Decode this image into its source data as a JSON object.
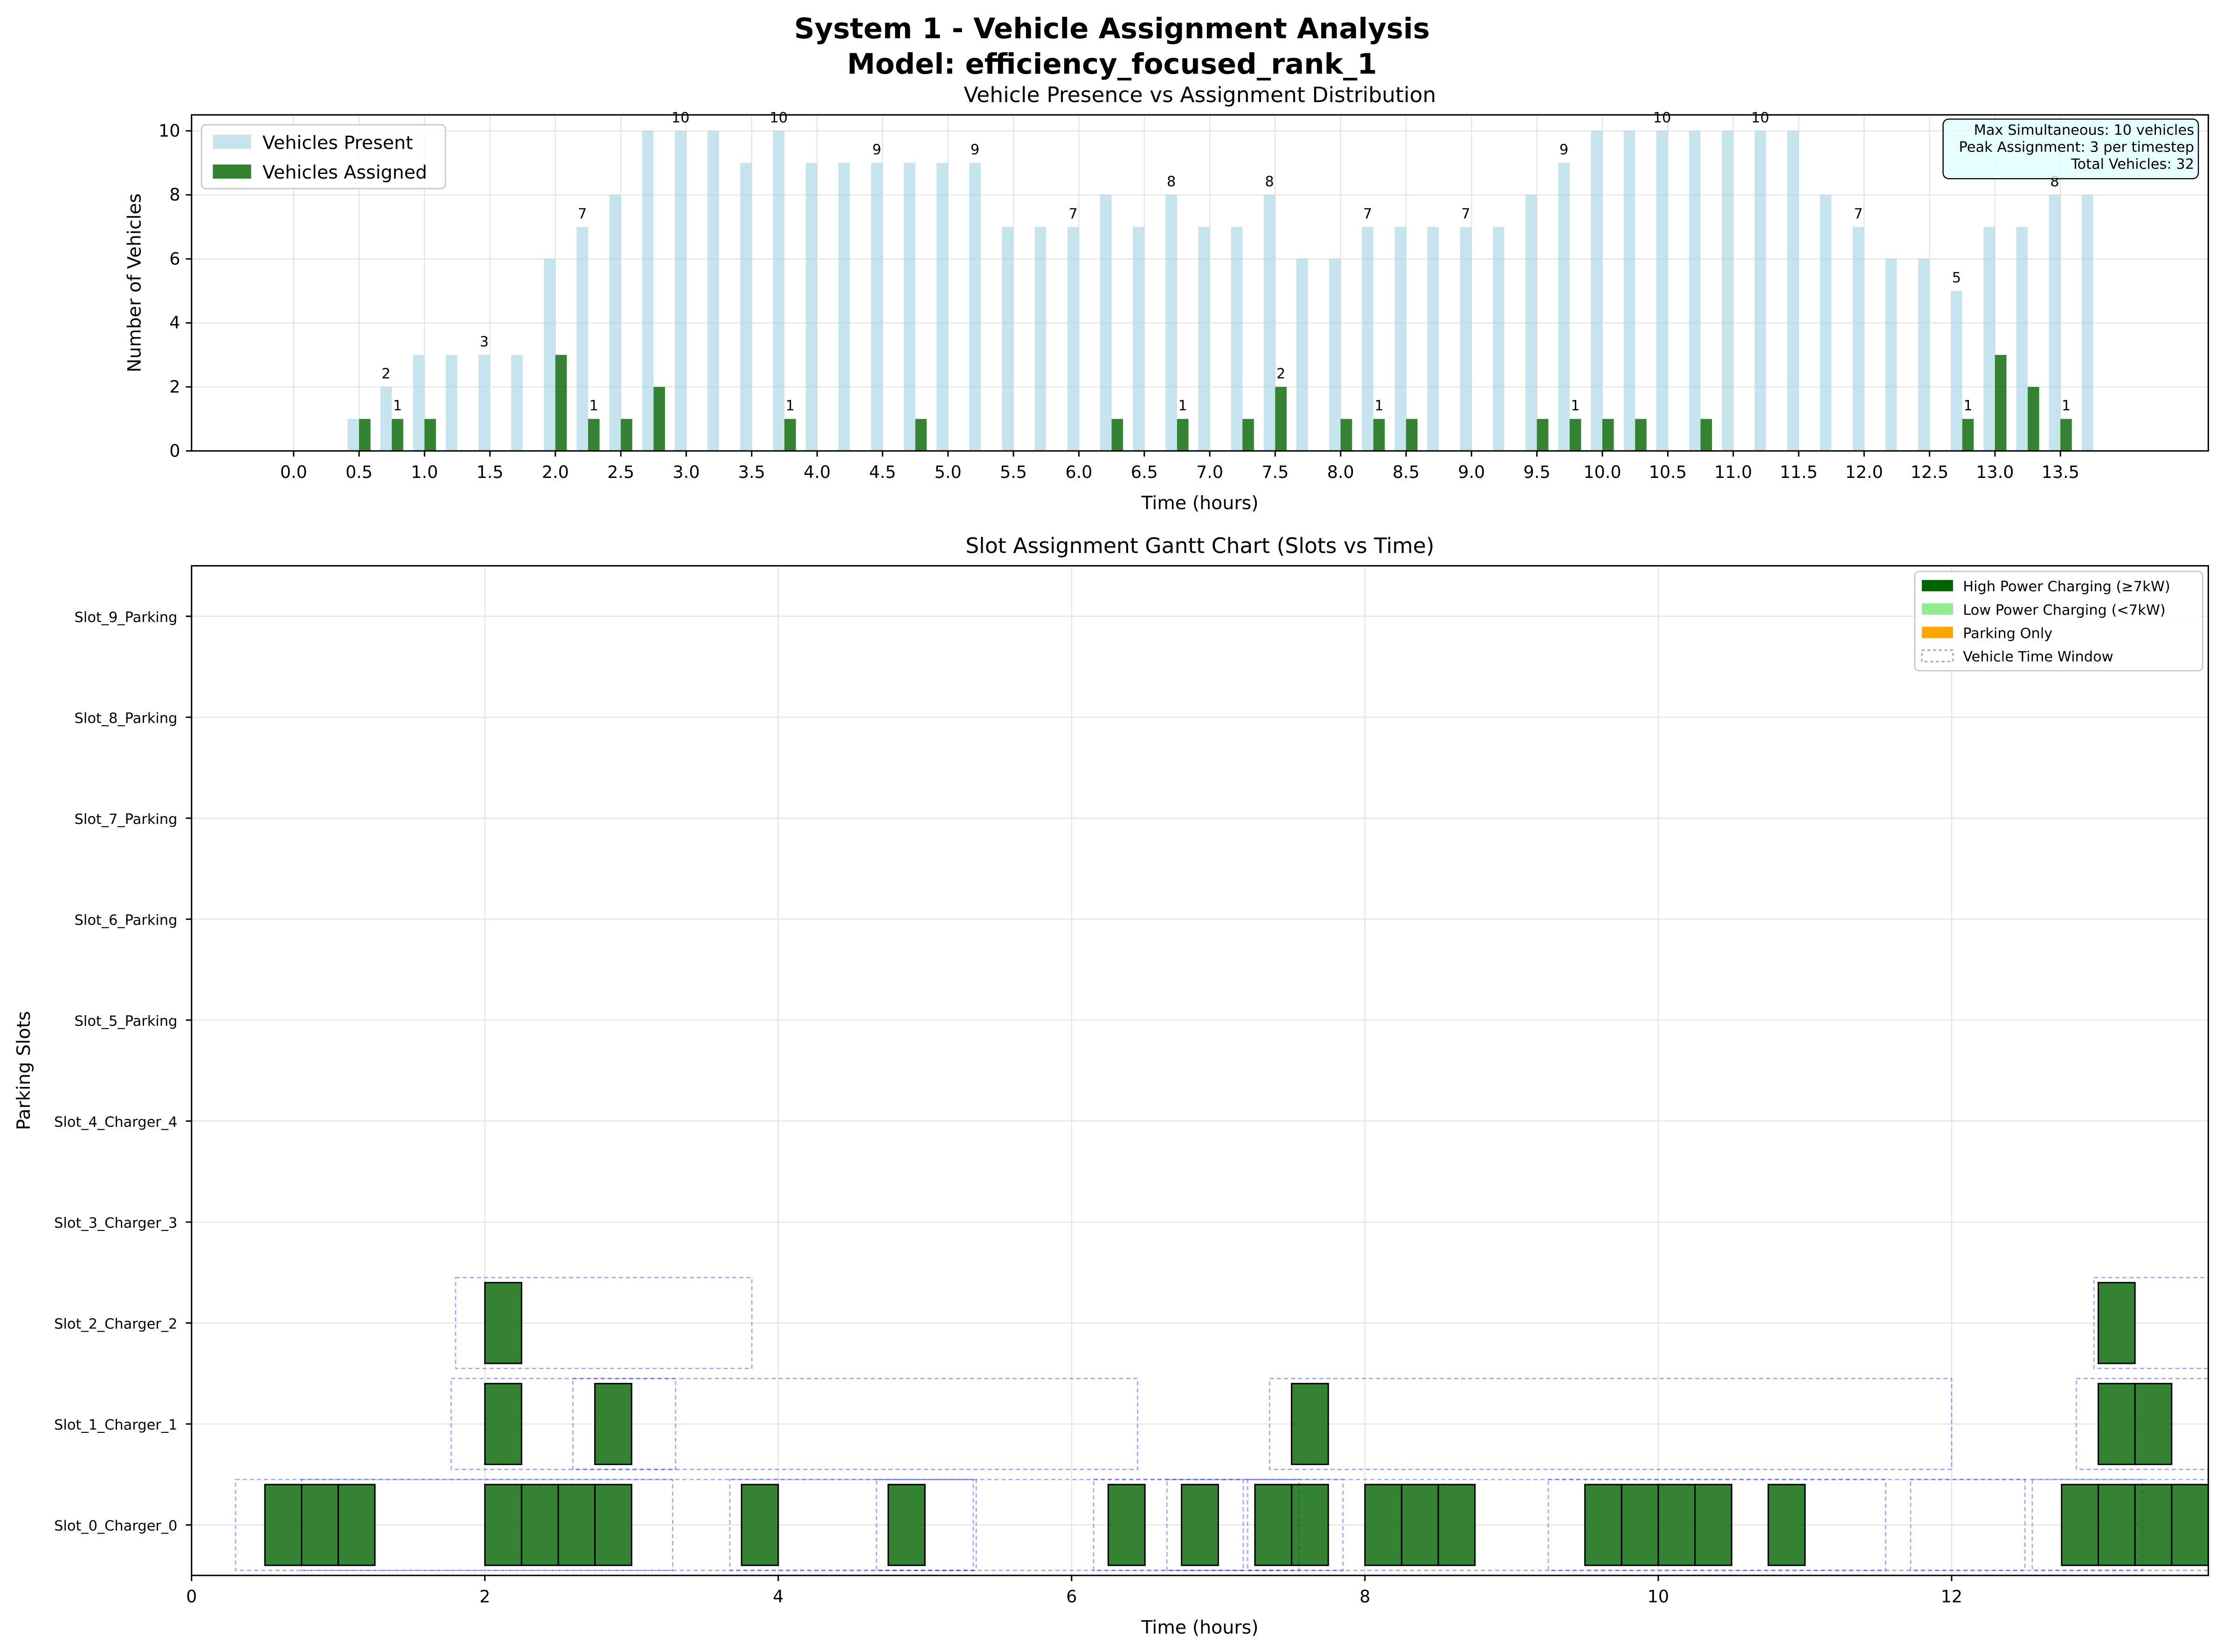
{
  "title": "System 1 - Vehicle Assignment Analysis",
  "subtitle": "Model: efficiency_focused_rank_1",
  "chart_data": [
    {
      "type": "bar",
      "title": "Vehicle Presence vs Assignment Distribution",
      "x_label": "Time (hours)",
      "y_label": "Number of Vehicles",
      "x": [
        0,
        0.25,
        0.5,
        0.75,
        1,
        1.25,
        1.5,
        1.75,
        2,
        2.25,
        2.5,
        2.75,
        3,
        3.25,
        3.5,
        3.75,
        4,
        4.25,
        4.5,
        4.75,
        5,
        5.25,
        5.5,
        5.75,
        6,
        6.25,
        6.5,
        6.75,
        7,
        7.25,
        7.5,
        7.75,
        8,
        8.25,
        8.5,
        8.75,
        9,
        9.25,
        9.5,
        9.75,
        10,
        10.25,
        10.5,
        10.75,
        11,
        11.25,
        11.5,
        11.75,
        12,
        12.25,
        12.5,
        12.75,
        13,
        13.25,
        13.5,
        13.75
      ],
      "series": [
        {
          "name": "Vehicles Present",
          "color": "#add8e6",
          "label_color": "#0000ff",
          "values": [
            0,
            0,
            1,
            2,
            3,
            3,
            3,
            3,
            6,
            7,
            8,
            10,
            10,
            10,
            9,
            10,
            9,
            9,
            9,
            9,
            9,
            9,
            7,
            7,
            7,
            8,
            7,
            8,
            7,
            7,
            8,
            6,
            6,
            7,
            7,
            7,
            7,
            7,
            8,
            9,
            10,
            10,
            10,
            10,
            10,
            10,
            10,
            8,
            7,
            6,
            6,
            5,
            7,
            7,
            8,
            8
          ]
        },
        {
          "name": "Vehicles Assigned",
          "color": "#006400",
          "label_color": "#006400",
          "values": [
            0,
            0,
            1,
            1,
            1,
            0,
            0,
            0,
            3,
            1,
            1,
            2,
            0,
            0,
            0,
            1,
            0,
            0,
            0,
            1,
            0,
            0,
            0,
            0,
            0,
            1,
            0,
            1,
            0,
            1,
            2,
            0,
            1,
            1,
            1,
            0,
            0,
            0,
            1,
            1,
            1,
            1,
            0,
            1,
            0,
            0,
            0,
            0,
            0,
            0,
            0,
            1,
            3,
            2,
            1,
            0
          ]
        }
      ],
      "xlim": [
        -0.78,
        14.63
      ],
      "xticks": [
        {
          "value": 0,
          "label": "0.0"
        },
        {
          "value": 0.5,
          "label": "0.5"
        },
        {
          "value": 1,
          "label": "1.0"
        },
        {
          "value": 1.5,
          "label": "1.5"
        },
        {
          "value": 2,
          "label": "2.0"
        },
        {
          "value": 2.5,
          "label": "2.5"
        },
        {
          "value": 3,
          "label": "3.0"
        },
        {
          "value": 3.5,
          "label": "3.5"
        },
        {
          "value": 4,
          "label": "4.0"
        },
        {
          "value": 4.5,
          "label": "4.5"
        },
        {
          "value": 5,
          "label": "5.0"
        },
        {
          "value": 5.5,
          "label": "5.5"
        },
        {
          "value": 6,
          "label": "6.0"
        },
        {
          "value": 6.5,
          "label": "6.5"
        },
        {
          "value": 7,
          "label": "7.0"
        },
        {
          "value": 7.5,
          "label": "7.5"
        },
        {
          "value": 8,
          "label": "8.0"
        },
        {
          "value": 8.5,
          "label": "8.5"
        },
        {
          "value": 9,
          "label": "9.0"
        },
        {
          "value": 9.5,
          "label": "9.5"
        },
        {
          "value": 10,
          "label": "10.0"
        },
        {
          "value": 10.5,
          "label": "10.5"
        },
        {
          "value": 11,
          "label": "11.0"
        },
        {
          "value": 11.5,
          "label": "11.5"
        },
        {
          "value": 12,
          "label": "12.0"
        },
        {
          "value": 12.5,
          "label": "12.5"
        },
        {
          "value": 13,
          "label": "13.0"
        },
        {
          "value": 13.5,
          "label": "13.5"
        }
      ],
      "ylim": [
        0,
        10.5
      ],
      "yticks": [
        0,
        2,
        4,
        6,
        8,
        10
      ],
      "grid": true,
      "legend": "upper left",
      "info_box": [
        "Max Simultaneous: 10 vehicles",
        "Peak Assignment: 3 per timestep",
        "Total Vehicles: 32"
      ]
    },
    {
      "type": "gantt",
      "title": "Slot Assignment Gantt Chart (Slots vs Time)",
      "x_label": "Time (hours)",
      "y_label": "Parking Slots",
      "categories": [
        "Slot_0_Charger_0",
        "Slot_1_Charger_1",
        "Slot_2_Charger_2",
        "Slot_3_Charger_3",
        "Slot_4_Charger_4",
        "Slot_5_Parking",
        "Slot_6_Parking",
        "Slot_7_Parking",
        "Slot_8_Parking",
        "Slot_9_Parking"
      ],
      "xlim": [
        0,
        13.75
      ],
      "xticks": [
        0,
        2,
        4,
        6,
        8,
        10,
        12
      ],
      "ylim": [
        -0.5,
        9.5
      ],
      "grid": true,
      "legend": "upper right",
      "legend_items": [
        {
          "name": "High Power Charging (≥7kW)",
          "color": "#006400"
        },
        {
          "name": "Low Power Charging (<7kW)",
          "color": "#90ee90"
        },
        {
          "name": "Parking Only",
          "color": "#ffa500"
        },
        {
          "name": "Vehicle Time Window",
          "color": "#0000ff"
        }
      ],
      "assignments": [
        {
          "slot": 0,
          "start": 0.5,
          "end": 0.75
        },
        {
          "slot": 0,
          "start": 0.75,
          "end": 1.0
        },
        {
          "slot": 0,
          "start": 1.0,
          "end": 1.25
        },
        {
          "slot": 0,
          "start": 2.0,
          "end": 2.25
        },
        {
          "slot": 0,
          "start": 2.25,
          "end": 2.5
        },
        {
          "slot": 0,
          "start": 2.5,
          "end": 2.75
        },
        {
          "slot": 0,
          "start": 2.75,
          "end": 3.0
        },
        {
          "slot": 0,
          "start": 3.75,
          "end": 4.0
        },
        {
          "slot": 0,
          "start": 4.75,
          "end": 5.0
        },
        {
          "slot": 0,
          "start": 6.25,
          "end": 6.5
        },
        {
          "slot": 0,
          "start": 6.75,
          "end": 7.0
        },
        {
          "slot": 0,
          "start": 7.25,
          "end": 7.5
        },
        {
          "slot": 0,
          "start": 7.5,
          "end": 7.75
        },
        {
          "slot": 0,
          "start": 8.0,
          "end": 8.25
        },
        {
          "slot": 0,
          "start": 8.25,
          "end": 8.5
        },
        {
          "slot": 0,
          "start": 8.5,
          "end": 8.75
        },
        {
          "slot": 0,
          "start": 9.5,
          "end": 9.75
        },
        {
          "slot": 0,
          "start": 9.75,
          "end": 10.0
        },
        {
          "slot": 0,
          "start": 10.0,
          "end": 10.25
        },
        {
          "slot": 0,
          "start": 10.25,
          "end": 10.5
        },
        {
          "slot": 0,
          "start": 10.75,
          "end": 11.0
        },
        {
          "slot": 0,
          "start": 12.75,
          "end": 13.0
        },
        {
          "slot": 0,
          "start": 13.0,
          "end": 13.25
        },
        {
          "slot": 0,
          "start": 13.25,
          "end": 13.5
        },
        {
          "slot": 0,
          "start": 13.5,
          "end": 13.75
        },
        {
          "slot": 1,
          "start": 2.0,
          "end": 2.25
        },
        {
          "slot": 1,
          "start": 2.75,
          "end": 3.0
        },
        {
          "slot": 1,
          "start": 7.5,
          "end": 7.75
        },
        {
          "slot": 1,
          "start": 13.0,
          "end": 13.25
        },
        {
          "slot": 1,
          "start": 13.25,
          "end": 13.5
        },
        {
          "slot": 2,
          "start": 2.0,
          "end": 2.25
        },
        {
          "slot": 2,
          "start": 13.0,
          "end": 13.25
        }
      ],
      "time_windows": [
        {
          "slot": 2,
          "start": 1.8,
          "end": 3.82
        },
        {
          "slot": 2,
          "start": 12.97,
          "end": 13.75
        },
        {
          "slot": 1,
          "start": 1.77,
          "end": 3.3
        },
        {
          "slot": 1,
          "start": 2.6,
          "end": 6.45
        },
        {
          "slot": 1,
          "start": 7.35,
          "end": 12.0
        },
        {
          "slot": 1,
          "start": 12.85,
          "end": 13.75
        },
        {
          "slot": 0,
          "start": 0.3,
          "end": 13.75
        },
        {
          "slot": 0,
          "start": 0.75,
          "end": 3.28
        },
        {
          "slot": 0,
          "start": 3.67,
          "end": 5.33
        },
        {
          "slot": 0,
          "start": 4.67,
          "end": 5.35
        },
        {
          "slot": 0,
          "start": 6.15,
          "end": 7.17
        },
        {
          "slot": 0,
          "start": 6.65,
          "end": 7.55
        },
        {
          "slot": 0,
          "start": 7.2,
          "end": 7.85
        },
        {
          "slot": 0,
          "start": 9.25,
          "end": 11.55
        },
        {
          "slot": 0,
          "start": 11.72,
          "end": 12.5
        },
        {
          "slot": 0,
          "start": 12.55,
          "end": 13.3
        }
      ]
    }
  ]
}
